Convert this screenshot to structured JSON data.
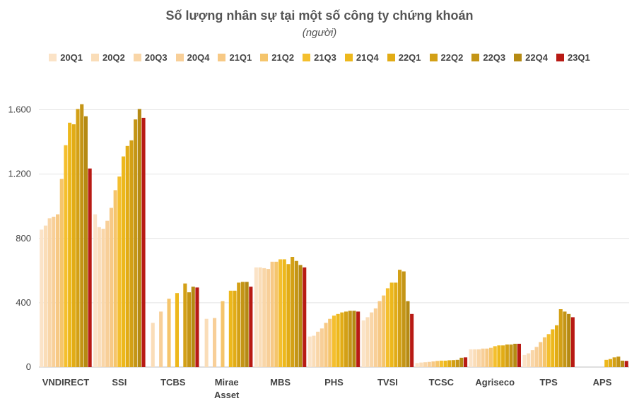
{
  "chart_data": {
    "type": "bar",
    "title": "Số lượng nhân sự tại một số công ty chứng khoán",
    "subtitle": "(người)",
    "ylim": [
      0,
      1800
    ],
    "yticks": [
      0,
      400,
      800,
      1200,
      1600
    ],
    "ytick_labels": [
      "0",
      "400",
      "800",
      "1.200",
      "1.600"
    ],
    "grid": true,
    "legend_position": "top",
    "series": [
      {
        "name": "20Q1",
        "color": "#FBE3C7"
      },
      {
        "name": "20Q2",
        "color": "#FADDB8"
      },
      {
        "name": "20Q3",
        "color": "#F9D6A8"
      },
      {
        "name": "20Q4",
        "color": "#F8CF98"
      },
      {
        "name": "21Q1",
        "color": "#F7C985"
      },
      {
        "name": "21Q2",
        "color": "#F5C56C"
      },
      {
        "name": "21Q3",
        "color": "#F4BF2E"
      },
      {
        "name": "21Q4",
        "color": "#EDB81C"
      },
      {
        "name": "22Q1",
        "color": "#E2AC16"
      },
      {
        "name": "22Q2",
        "color": "#D3A016"
      },
      {
        "name": "22Q3",
        "color": "#C49516"
      },
      {
        "name": "22Q4",
        "color": "#B58A13"
      },
      {
        "name": "23Q1",
        "color": "#B81A14"
      }
    ],
    "categories": [
      {
        "name": "VNDIRECT",
        "values": [
          855,
          880,
          925,
          935,
          950,
          1170,
          1380,
          1520,
          1510,
          1605,
          1635,
          1560,
          1235
        ]
      },
      {
        "name": "SSI",
        "values": [
          950,
          870,
          860,
          910,
          990,
          1100,
          1185,
          1310,
          1375,
          1410,
          1540,
          1605,
          1550
        ]
      },
      {
        "name": "TCBS",
        "values": [
          null,
          275,
          null,
          345,
          null,
          425,
          null,
          460,
          null,
          520,
          465,
          500,
          495
        ]
      },
      {
        "name": "Mirae Asset",
        "values": [
          null,
          300,
          null,
          305,
          null,
          410,
          null,
          475,
          475,
          525,
          530,
          530,
          500
        ]
      },
      {
        "name": "MBS",
        "values": [
          620,
          620,
          615,
          610,
          655,
          655,
          670,
          670,
          640,
          685,
          660,
          635,
          620
        ]
      },
      {
        "name": "PHS",
        "values": [
          190,
          195,
          220,
          240,
          275,
          300,
          320,
          330,
          340,
          345,
          350,
          350,
          345
        ]
      },
      {
        "name": "TVSI",
        "values": [
          290,
          310,
          340,
          365,
          410,
          445,
          490,
          525,
          525,
          605,
          595,
          410,
          330
        ]
      },
      {
        "name": "TCSC",
        "values": [
          25,
          28,
          30,
          32,
          35,
          38,
          40,
          40,
          42,
          43,
          45,
          58,
          60
        ]
      },
      {
        "name": "Agriseco",
        "values": [
          110,
          110,
          110,
          115,
          115,
          120,
          130,
          135,
          135,
          140,
          140,
          145,
          145
        ]
      },
      {
        "name": "TPS",
        "values": [
          75,
          85,
          105,
          125,
          155,
          185,
          205,
          235,
          260,
          360,
          345,
          330,
          310
        ]
      },
      {
        "name": "APS",
        "values": [
          null,
          null,
          null,
          null,
          null,
          null,
          null,
          45,
          50,
          60,
          65,
          40,
          38
        ]
      }
    ]
  }
}
